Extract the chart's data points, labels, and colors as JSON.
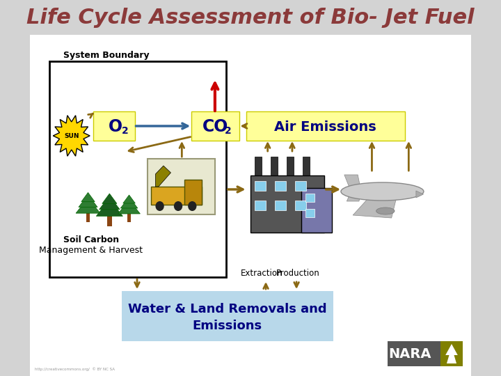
{
  "title": "Life Cycle Assessment of Bio- Jet Fuel",
  "title_color": "#8B3A3A",
  "title_fontsize": 22,
  "bg_color": "#D3D3D3",
  "white": "#FFFFFF",
  "light_yellow": "#FFFF99",
  "light_blue": "#ADD8E6",
  "dark_gray": "#555555",
  "olive_green": "#808000",
  "arrow_brown": "#8B6914",
  "arrow_red": "#CC0000",
  "arrow_blue": "#336699",
  "system_boundary_label": "System Boundary",
  "air_emissions_label": "Air Emissions",
  "soil_carbon_label": "Soil Carbon",
  "mgmt_harvest_label": "Management & Harvest",
  "extraction_label": "Extraction",
  "production_label": "Production",
  "water_land_label": "Water & Land Removals and\nEmissions",
  "sun_label": "SUN",
  "nara_text": "NARA"
}
